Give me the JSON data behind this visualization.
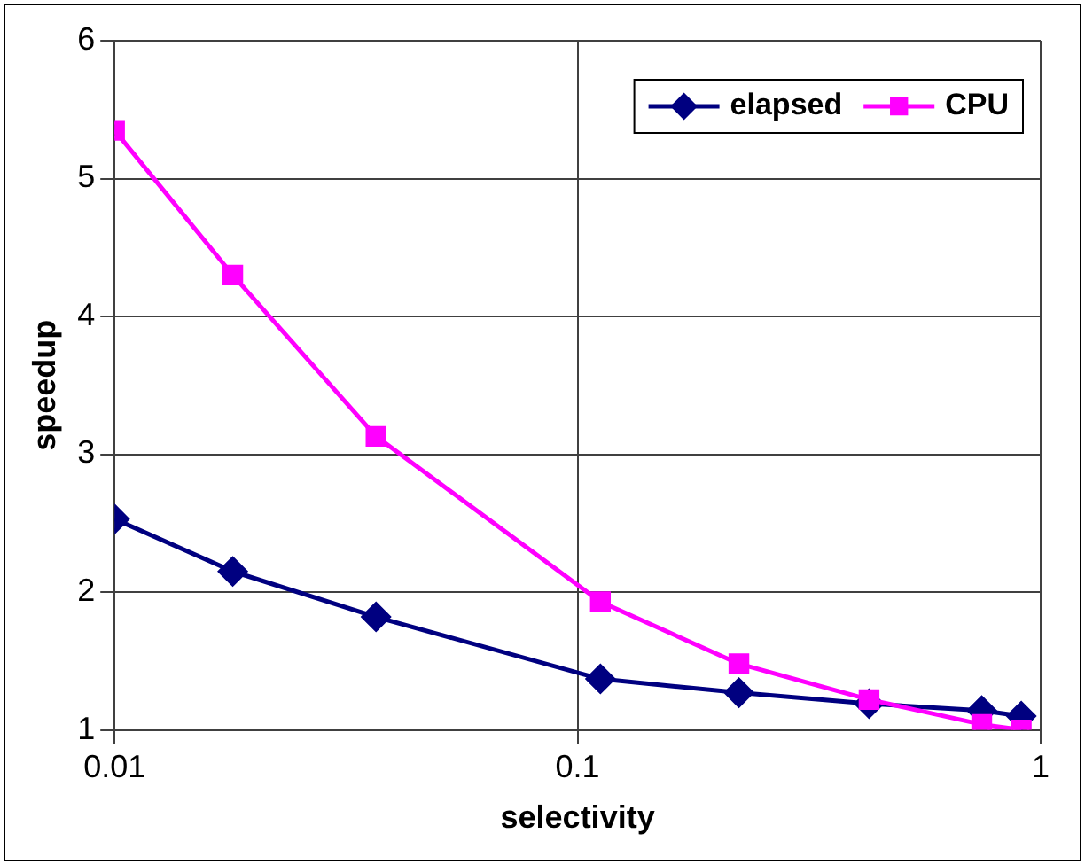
{
  "chart_data": {
    "type": "line",
    "xlabel": "selectivity",
    "ylabel": "speedup",
    "log": "x",
    "xlim": [
      0.01,
      1
    ],
    "xticks": [
      0.01,
      0.1,
      1
    ],
    "ylim": [
      1,
      6
    ],
    "yticks": [
      1,
      2,
      3,
      4,
      5,
      6
    ],
    "grid": true,
    "legend": "top right",
    "line_style": "solid",
    "x": [
      0.01,
      0.018,
      0.0367,
      0.112,
      0.223,
      0.426,
      0.746,
      0.908
    ],
    "series": [
      {
        "name": "elapsed",
        "color": "#000080",
        "marker": "diamond",
        "values": [
          2.53,
          2.15,
          1.82,
          1.37,
          1.27,
          1.19,
          1.14,
          1.1
        ]
      },
      {
        "name": "CPU",
        "color": "#ff00ff",
        "marker": "square",
        "values": [
          5.35,
          4.3,
          3.13,
          1.93,
          1.48,
          1.22,
          1.04,
          1.0
        ]
      }
    ]
  }
}
